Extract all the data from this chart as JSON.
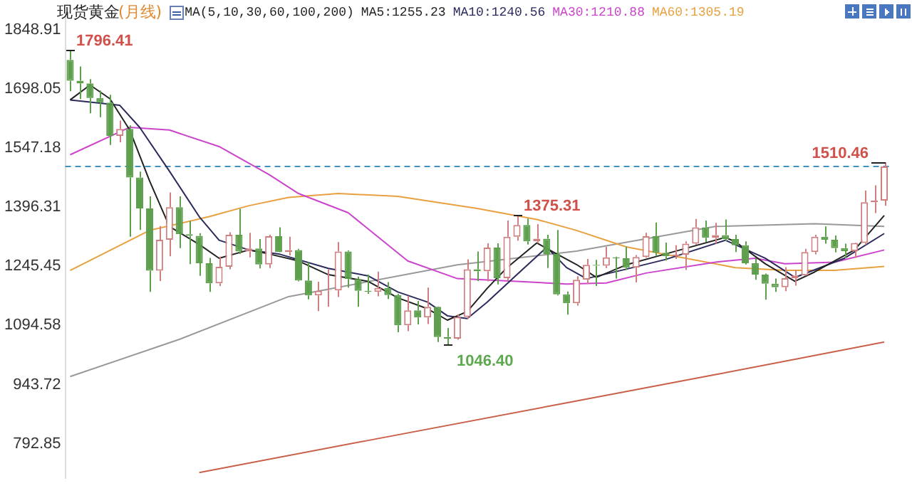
{
  "chart_data": {
    "type": "candlestick",
    "title": "现货黄金",
    "subtitle": "(月线)",
    "categories": [
      null,
      null,
      null,
      null,
      null,
      null,
      null,
      null,
      null,
      null,
      null,
      null,
      null,
      null,
      null,
      null,
      null,
      null,
      null,
      null,
      null,
      null,
      null,
      null,
      null,
      null,
      null,
      null,
      null,
      null,
      null,
      null,
      null,
      null,
      null,
      null,
      null,
      null,
      null,
      null,
      null,
      null,
      null,
      null,
      null,
      null,
      null,
      null,
      null,
      null,
      null,
      null,
      null,
      null,
      null,
      null,
      null,
      null,
      null,
      null,
      null,
      null,
      null,
      null,
      null,
      null,
      null,
      null,
      null,
      null,
      null,
      null,
      null,
      null,
      null,
      null,
      null,
      null,
      null,
      null,
      null,
      null,
      null
    ],
    "ohlc": [
      [
        1772,
        1796.41,
        1692,
        1719
      ],
      [
        1719,
        1755,
        1672,
        1712
      ],
      [
        1712,
        1723,
        1636,
        1675
      ],
      [
        1675,
        1694,
        1626,
        1663
      ],
      [
        1663,
        1683,
        1555,
        1578
      ],
      [
        1578,
        1617,
        1562,
        1596
      ],
      [
        1596,
        1605,
        1321,
        1472
      ],
      [
        1472,
        1487,
        1338,
        1393
      ],
      [
        1393,
        1424,
        1180,
        1234
      ],
      [
        1234,
        1348,
        1208,
        1313
      ],
      [
        1313,
        1434,
        1271,
        1396
      ],
      [
        1396,
        1424,
        1292,
        1327
      ],
      [
        1327,
        1361,
        1251,
        1323
      ],
      [
        1323,
        1330,
        1221,
        1253
      ],
      [
        1253,
        1267,
        1180,
        1202
      ],
      [
        1202,
        1270,
        1195,
        1244
      ],
      [
        1244,
        1332,
        1238,
        1326
      ],
      [
        1326,
        1392,
        1277,
        1283
      ],
      [
        1283,
        1331,
        1268,
        1291
      ],
      [
        1291,
        1315,
        1240,
        1250
      ],
      [
        1250,
        1326,
        1241,
        1322
      ],
      [
        1322,
        1345,
        1281,
        1282
      ],
      [
        1282,
        1321,
        1273,
        1287
      ],
      [
        1287,
        1290,
        1207,
        1209
      ],
      [
        1209,
        1255,
        1161,
        1171
      ],
      [
        1171,
        1206,
        1131,
        1183
      ],
      [
        1183,
        1238,
        1142,
        1184
      ],
      [
        1184,
        1307,
        1167,
        1283
      ],
      [
        1283,
        1286,
        1191,
        1213
      ],
      [
        1213,
        1219,
        1142,
        1183
      ],
      [
        1183,
        1224,
        1175,
        1180
      ],
      [
        1180,
        1232,
        1169,
        1190
      ],
      [
        1190,
        1205,
        1162,
        1172
      ],
      [
        1172,
        1175,
        1077,
        1095
      ],
      [
        1095,
        1170,
        1080,
        1133
      ],
      [
        1133,
        1157,
        1097,
        1115
      ],
      [
        1115,
        1191,
        1098,
        1142
      ],
      [
        1142,
        1143,
        1052,
        1065
      ],
      [
        1065,
        1088,
        1046.4,
        1061
      ],
      [
        1061,
        1123,
        1058,
        1116
      ],
      [
        1116,
        1263,
        1111,
        1238
      ],
      [
        1238,
        1283,
        1208,
        1233
      ],
      [
        1233,
        1304,
        1207,
        1293
      ],
      [
        1293,
        1304,
        1199,
        1215
      ],
      [
        1215,
        1362,
        1208,
        1321
      ],
      [
        1321,
        1375.31,
        1311,
        1351
      ],
      [
        1351,
        1367,
        1301,
        1309
      ],
      [
        1309,
        1353,
        1304,
        1316
      ],
      [
        1316,
        1326,
        1241,
        1277
      ],
      [
        1277,
        1338,
        1171,
        1174
      ],
      [
        1174,
        1181,
        1122,
        1151
      ],
      [
        1151,
        1220,
        1145,
        1211
      ],
      [
        1211,
        1264,
        1200,
        1249
      ],
      [
        1249,
        1262,
        1195,
        1247
      ],
      [
        1247,
        1295,
        1241,
        1268
      ],
      [
        1268,
        1270,
        1214,
        1266
      ],
      [
        1266,
        1296,
        1236,
        1242
      ],
      [
        1242,
        1274,
        1204,
        1269
      ],
      [
        1269,
        1331,
        1267,
        1322
      ],
      [
        1322,
        1357,
        1271,
        1280
      ],
      [
        1280,
        1306,
        1260,
        1271
      ],
      [
        1271,
        1299,
        1264,
        1275
      ],
      [
        1275,
        1309,
        1236,
        1303
      ],
      [
        1303,
        1366,
        1300,
        1345
      ],
      [
        1345,
        1362,
        1307,
        1318
      ],
      [
        1318,
        1356,
        1303,
        1325
      ],
      [
        1325,
        1365,
        1310,
        1315
      ],
      [
        1315,
        1326,
        1282,
        1299
      ],
      [
        1299,
        1309,
        1250,
        1253
      ],
      [
        1253,
        1266,
        1211,
        1224
      ],
      [
        1224,
        1227,
        1160,
        1201
      ],
      [
        1201,
        1214,
        1180,
        1192
      ],
      [
        1192,
        1243,
        1182,
        1215
      ],
      [
        1215,
        1237,
        1196,
        1222
      ],
      [
        1222,
        1290,
        1221,
        1282
      ],
      [
        1282,
        1326,
        1276,
        1321
      ],
      [
        1321,
        1347,
        1303,
        1313
      ],
      [
        1313,
        1324,
        1281,
        1292
      ],
      [
        1292,
        1303,
        1266,
        1284
      ],
      [
        1284,
        1306,
        1267,
        1305
      ],
      [
        1305,
        1439,
        1300,
        1409
      ],
      [
        1409,
        1452,
        1381,
        1413
      ],
      [
        1413,
        1510.46,
        1400,
        1500
      ]
    ],
    "colors": [
      "#5e9f4e",
      "#5e9f4e",
      "#5e9f4e",
      "#5e9f4e",
      "#5e9f4e",
      "#cf7f7f",
      "#5e9f4e",
      "#5e9f4e",
      "#5e9f4e",
      "#cf7f7f",
      "#cf7f7f",
      "#5e9f4e",
      "#5e9f4e",
      "#5e9f4e",
      "#5e9f4e",
      "#cf7f7f",
      "#cf7f7f",
      "#5e9f4e",
      "#cf7f7f",
      "#5e9f4e",
      "#cf7f7f",
      "#5e9f4e",
      "#cf7f7f",
      "#5e9f4e",
      "#5e9f4e",
      "#cf7f7f",
      "#cf7f7f",
      "#cf7f7f",
      "#5e9f4e",
      "#5e9f4e",
      "#5e9f4e",
      "#cf7f7f",
      "#5e9f4e",
      "#5e9f4e",
      "#cf7f7f",
      "#5e9f4e",
      "#cf7f7f",
      "#5e9f4e",
      "#5e9f4e",
      "#cf7f7f",
      "#cf7f7f",
      "#5e9f4e",
      "#cf7f7f",
      "#5e9f4e",
      "#cf7f7f",
      "#cf7f7f",
      "#5e9f4e",
      "#cf7f7f",
      "#5e9f4e",
      "#5e9f4e",
      "#5e9f4e",
      "#cf7f7f",
      "#cf7f7f",
      "#5e9f4e",
      "#cf7f7f",
      "#5e9f4e",
      "#5e9f4e",
      "#cf7f7f",
      "#cf7f7f",
      "#5e9f4e",
      "#5e9f4e",
      "#cf7f7f",
      "#cf7f7f",
      "#cf7f7f",
      "#5e9f4e",
      "#cf7f7f",
      "#5e9f4e",
      "#5e9f4e",
      "#5e9f4e",
      "#5e9f4e",
      "#5e9f4e",
      "#5e9f4e",
      "#cf7f7f",
      "#cf7f7f",
      "#cf7f7f",
      "#cf7f7f",
      "#5e9f4e",
      "#5e9f4e",
      "#5e9f4e",
      "#cf7f7f",
      "#cf7f7f",
      "#cf7f7f",
      "#cf7f7f"
    ],
    "series": [
      {
        "type": "line",
        "name": "MA5:1255.23",
        "color": "#222222",
        "values": [
          1670,
          null,
          1708,
          null,
          1673,
          null,
          1593,
          null,
          1463,
          null,
          1347,
          null,
          null,
          1301,
          null,
          1266,
          null,
          null,
          1287,
          null,
          1277,
          null,
          null,
          1259,
          null,
          null,
          1224,
          null,
          null,
          null,
          1207,
          null,
          null,
          1165,
          null,
          null,
          1137,
          null,
          1108,
          null,
          1130,
          null,
          1189,
          null,
          1242,
          null,
          null,
          1305,
          null,
          1277,
          null,
          1250,
          null,
          1217,
          null,
          null,
          1249,
          null,
          null,
          null,
          1277,
          null,
          null,
          null,
          null,
          null,
          1319,
          1308,
          null,
          null,
          1252,
          null,
          null,
          1207,
          null,
          1231,
          null,
          null,
          null,
          1287,
          null,
          null,
          1375
        ]
      },
      {
        "type": "line",
        "name": "MA10:1240.56",
        "color": "#2a2a5c",
        "values": [
          1670,
          null,
          null,
          null,
          null,
          1656,
          null,
          1600,
          null,
          null,
          1488,
          null,
          null,
          1372,
          null,
          1312,
          null,
          null,
          1287,
          null,
          null,
          1277,
          null,
          null,
          null,
          null,
          1240,
          null,
          null,
          null,
          1221,
          null,
          null,
          1180,
          null,
          null,
          1154,
          null,
          1119,
          null,
          1112,
          null,
          1154,
          null,
          null,
          1224,
          null,
          null,
          1294,
          null,
          1242,
          null,
          1214,
          null,
          null,
          null,
          1238,
          null,
          null,
          null,
          1263,
          null,
          null,
          null,
          null,
          null,
          1312,
          null,
          null,
          null,
          1266,
          null,
          null,
          1217,
          null,
          null,
          null,
          null,
          1266,
          null,
          null,
          null,
          1329
        ]
      },
      {
        "type": "line",
        "name": "MA30:1210.88",
        "color": "#cc44cc",
        "values": [
          1530,
          null,
          null,
          null,
          null,
          null,
          1600,
          null,
          null,
          null,
          1593,
          null,
          null,
          null,
          null,
          1551,
          null,
          null,
          null,
          null,
          1480,
          null,
          null,
          1431,
          null,
          null,
          null,
          null,
          1382,
          null,
          null,
          null,
          null,
          null,
          1259,
          null,
          null,
          null,
          null,
          1214,
          null,
          null,
          null,
          null,
          null,
          1207,
          null,
          null,
          null,
          null,
          1200,
          null,
          null,
          null,
          1203,
          null,
          null,
          null,
          1228,
          null,
          null,
          null,
          null,
          null,
          null,
          1256,
          null,
          null,
          null,
          1266,
          null,
          null,
          1252,
          null,
          null,
          null,
          null,
          1256,
          null,
          null,
          null,
          null,
          1287
        ]
      },
      {
        "type": "line",
        "name": "MA60:1305.19",
        "color": "#e8a040",
        "values": [
          1235,
          null,
          null,
          null,
          null,
          null,
          null,
          null,
          1337,
          null,
          null,
          null,
          null,
          null,
          1372,
          null,
          null,
          null,
          1400,
          null,
          null,
          null,
          1421,
          null,
          null,
          null,
          null,
          1431,
          null,
          null,
          null,
          null,
          null,
          1424,
          null,
          null,
          null,
          null,
          null,
          null,
          null,
          1393,
          null,
          null,
          null,
          null,
          null,
          1365,
          null,
          null,
          null,
          1337,
          null,
          null,
          null,
          null,
          1295,
          null,
          null,
          null,
          null,
          null,
          1266,
          null,
          null,
          null,
          null,
          1242,
          null,
          null,
          null,
          null,
          1235,
          null,
          null,
          null,
          null,
          1235,
          null,
          null,
          null,
          null,
          1245
        ]
      },
      {
        "type": "line",
        "color": "#999999",
        "values": [
          964,
          null,
          null,
          null,
          null,
          null,
          null,
          null,
          null,
          null,
          null,
          1059,
          null,
          null,
          null,
          null,
          null,
          null,
          null,
          null,
          null,
          null,
          1168,
          null,
          null,
          null,
          null,
          null,
          null,
          null,
          null,
          null,
          null,
          null,
          null,
          null,
          null,
          null,
          null,
          1249,
          null,
          null,
          null,
          null,
          null,
          null,
          null,
          null,
          null,
          null,
          null,
          1284,
          null,
          null,
          null,
          null,
          null,
          null,
          null,
          null,
          null,
          null,
          null,
          null,
          null,
          1347,
          null,
          null,
          null,
          null,
          null,
          null,
          null,
          null,
          null,
          1354,
          null,
          null,
          null,
          null,
          null,
          null,
          1347
        ]
      },
      {
        "type": "line",
        "color": "#c8604a",
        "values": [
          null,
          null,
          null,
          null,
          null,
          null,
          null,
          null,
          null,
          null,
          null,
          null,
          null,
          719,
          null,
          null,
          null,
          null,
          null,
          null,
          null,
          null,
          null,
          null,
          null,
          null,
          null,
          null,
          null,
          null,
          801,
          null,
          null,
          null,
          null,
          null,
          null,
          null,
          null,
          null,
          null,
          null,
          null,
          null,
          null,
          null,
          null,
          null,
          null,
          null,
          897,
          null,
          null,
          null,
          null,
          null,
          null,
          null,
          null,
          null,
          null,
          null,
          null,
          null,
          null,
          969,
          null,
          null,
          null,
          null,
          null,
          null,
          null,
          null,
          null,
          null,
          null,
          null,
          null,
          null,
          null,
          null,
          1052
        ]
      }
    ],
    "ylim": [
      705,
      1890
    ],
    "yticks": [
      792.85,
      943.72,
      1094.58,
      1245.45,
      1396.31,
      1547.18,
      1698.05,
      1848.91
    ],
    "annotations": [
      "MA(5,10,30,60,100,200)",
      "1796.41",
      "1375.31",
      "1046.40",
      "1510.46"
    ],
    "ref_lines": [
      {
        "axis": "y",
        "value": 1500,
        "color": "#3f8fbf",
        "line_style": "dashed"
      }
    ],
    "tick_labels": "y",
    "marker": "none",
    "legend": "top",
    "grid": false
  }
}
